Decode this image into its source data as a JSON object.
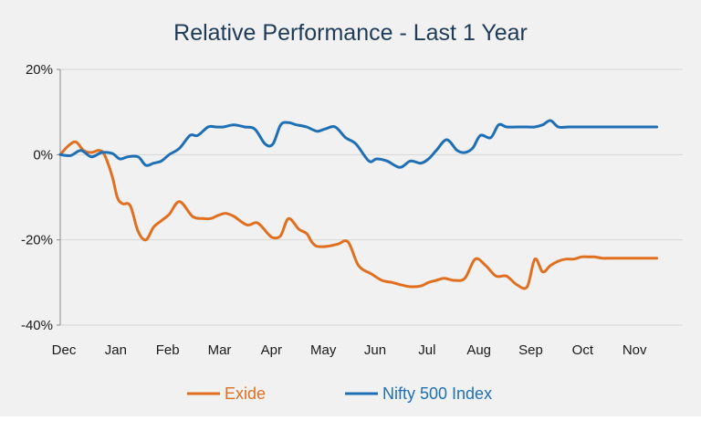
{
  "chart_data": {
    "type": "line",
    "title": "Relative Performance - Last 1 Year",
    "xlabel": "",
    "ylabel": "",
    "ylim": [
      -40,
      20
    ],
    "yticks": [
      20,
      0,
      -20,
      -40
    ],
    "ytick_labels": [
      "20%",
      "0%",
      "-20%",
      "-40%"
    ],
    "xlim": [
      0,
      12
    ],
    "xticks": [
      0,
      1,
      2,
      3,
      4,
      5,
      6,
      7,
      8,
      9,
      10,
      11
    ],
    "xtick_labels": [
      "Dec",
      "Jan",
      "Feb",
      "Mar",
      "Apr",
      "May",
      "Jun",
      "Jul",
      "Aug",
      "Sep",
      "Oct",
      "Nov"
    ],
    "grid": true,
    "legend_position": "bottom",
    "series": [
      {
        "name": "Exide",
        "color": "#e07020",
        "x": [
          0,
          0.15,
          0.3,
          0.45,
          0.6,
          0.75,
          0.85,
          1.0,
          1.1,
          1.2,
          1.35,
          1.5,
          1.65,
          1.8,
          1.95,
          2.1,
          2.3,
          2.55,
          2.75,
          2.9,
          3.0,
          3.1,
          3.2,
          3.35,
          3.6,
          3.8,
          4.0,
          4.1,
          4.25,
          4.4,
          4.6,
          4.75,
          4.85,
          4.95,
          5.15,
          5.35,
          5.55,
          5.75,
          6.0,
          6.2,
          6.4,
          6.55,
          6.75,
          6.95,
          7.1,
          7.25,
          7.4,
          7.6,
          7.8,
          8.0,
          8.2,
          8.4,
          8.6,
          8.8,
          9.0,
          9.15,
          9.3,
          9.45,
          9.6,
          9.75,
          9.9,
          10.05,
          10.2,
          10.3,
          10.45,
          10.6,
          10.75,
          10.95,
          11.15,
          11.35,
          11.5
        ],
        "y": [
          0,
          2,
          3,
          1,
          0.5,
          1,
          0,
          -5,
          -10,
          -11.5,
          -12,
          -18,
          -20,
          -17,
          -15.5,
          -14,
          -11,
          -14.5,
          -15,
          -15,
          -14.5,
          -14,
          -13.8,
          -14.5,
          -16.5,
          -16,
          -18.5,
          -19.5,
          -19,
          -15,
          -17.5,
          -18.5,
          -20.5,
          -21.5,
          -21.5,
          -21,
          -20.5,
          -26,
          -28,
          -29.5,
          -30,
          -30.5,
          -31,
          -30.8,
          -30,
          -29.5,
          -29,
          -29.5,
          -29,
          -24.5,
          -26,
          -28.5,
          -28.5,
          -30.5,
          -31,
          -24.5,
          -27.5,
          -26,
          -25,
          -24.5,
          -24.5,
          -24,
          -24,
          -24,
          -24.3,
          -24.3,
          -24.3,
          -24.3,
          -24.3,
          -24.3,
          -24.3
        ]
      },
      {
        "name": "Nifty 500 Index",
        "color": "#1f6fb5",
        "x": [
          0,
          0.2,
          0.4,
          0.6,
          0.8,
          1.0,
          1.15,
          1.3,
          1.5,
          1.65,
          1.8,
          1.95,
          2.1,
          2.3,
          2.5,
          2.65,
          2.85,
          3.0,
          3.15,
          3.35,
          3.55,
          3.75,
          3.95,
          4.1,
          4.25,
          4.4,
          4.55,
          4.75,
          4.95,
          5.1,
          5.3,
          5.5,
          5.7,
          5.95,
          6.1,
          6.3,
          6.55,
          6.75,
          6.95,
          7.1,
          7.25,
          7.45,
          7.65,
          7.8,
          7.95,
          8.1,
          8.3,
          8.45,
          8.6,
          8.8,
          9.0,
          9.15,
          9.3,
          9.45,
          9.6,
          9.8,
          10.0,
          10.15,
          10.3,
          10.45,
          10.65,
          10.85,
          11.05,
          11.2,
          11.35,
          11.5
        ],
        "y": [
          0,
          -0.2,
          1,
          -0.5,
          0.5,
          0.3,
          -1,
          -0.5,
          -0.5,
          -2.5,
          -2,
          -1.5,
          0,
          1.5,
          4.5,
          4.5,
          6.5,
          6.5,
          6.5,
          7,
          6.5,
          6,
          2.5,
          2.5,
          7,
          7.5,
          7,
          6.5,
          5.5,
          6,
          6.5,
          4,
          2.5,
          -1.5,
          -1,
          -1.5,
          -3,
          -1.5,
          -2,
          -1,
          1,
          3.5,
          1,
          0.5,
          1.5,
          4.5,
          4,
          7,
          6.5,
          6.5,
          6.5,
          6.5,
          7,
          8,
          6.5,
          6.5,
          6.5,
          6.5,
          6.5,
          6.5,
          6.5,
          6.5,
          6.5,
          6.5,
          6.5,
          6.5
        ]
      }
    ]
  }
}
